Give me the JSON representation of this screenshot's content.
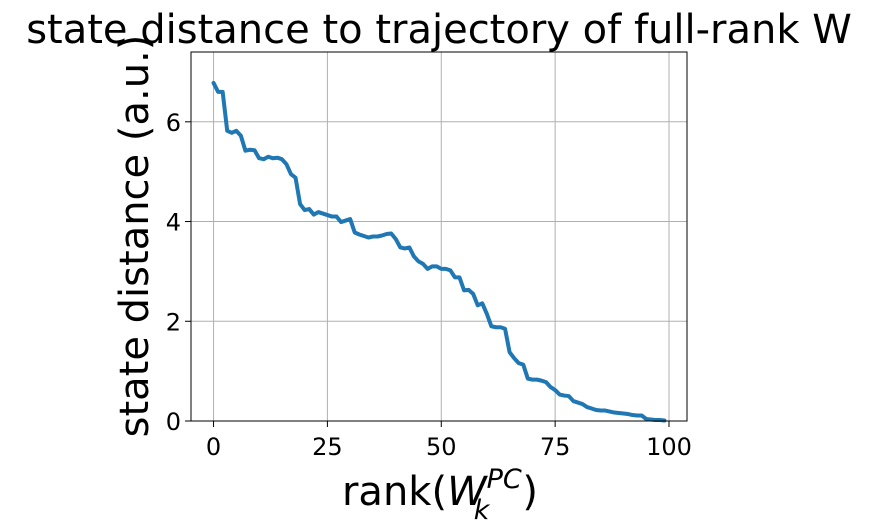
{
  "chart_data": {
    "type": "line",
    "title": "state distance to trajectory of full-rank W",
    "ylabel": "state distance (a.u.)",
    "xlabel": {
      "prefix": "rank(",
      "main": "W",
      "subscript": "k",
      "superscript": "PC",
      "suffix": ")"
    },
    "xlim": [
      -4.95,
      103.95
    ],
    "ylim": [
      0,
      7.4
    ],
    "xticks": [
      0,
      25,
      50,
      75,
      100
    ],
    "yticks": [
      0,
      2,
      4,
      6
    ],
    "grid": true,
    "line_color": "#1f77b4",
    "x": [
      0,
      1,
      2,
      3,
      4,
      5,
      6,
      7,
      8,
      9,
      10,
      11,
      12,
      13,
      14,
      15,
      16,
      17,
      18,
      19,
      20,
      21,
      22,
      23,
      24,
      25,
      26,
      27,
      28,
      29,
      30,
      31,
      32,
      33,
      34,
      35,
      36,
      37,
      38,
      39,
      40,
      41,
      42,
      43,
      44,
      45,
      46,
      47,
      48,
      49,
      50,
      51,
      52,
      53,
      54,
      55,
      56,
      57,
      58,
      59,
      60,
      61,
      62,
      63,
      64,
      65,
      66,
      67,
      68,
      69,
      70,
      71,
      72,
      73,
      74,
      75,
      76,
      77,
      78,
      79,
      80,
      81,
      82,
      83,
      84,
      85,
      86,
      87,
      88,
      89,
      90,
      91,
      92,
      93,
      94,
      95,
      96,
      97,
      98,
      99
    ],
    "y": [
      6.78,
      6.6,
      6.6,
      5.82,
      5.78,
      5.82,
      5.72,
      5.42,
      5.44,
      5.43,
      5.27,
      5.25,
      5.3,
      5.27,
      5.28,
      5.25,
      5.15,
      4.95,
      4.88,
      4.35,
      4.23,
      4.25,
      4.14,
      4.19,
      4.16,
      4.13,
      4.1,
      4.1,
      3.99,
      4.02,
      4.05,
      3.78,
      3.74,
      3.71,
      3.68,
      3.7,
      3.7,
      3.72,
      3.75,
      3.76,
      3.65,
      3.48,
      3.46,
      3.48,
      3.3,
      3.2,
      3.15,
      3.05,
      3.1,
      3.1,
      3.05,
      3.05,
      3.02,
      2.88,
      2.88,
      2.62,
      2.63,
      2.55,
      2.32,
      2.36,
      2.15,
      1.9,
      1.88,
      1.88,
      1.85,
      1.38,
      1.26,
      1.16,
      1.13,
      0.85,
      0.83,
      0.83,
      0.81,
      0.78,
      0.68,
      0.62,
      0.53,
      0.51,
      0.5,
      0.4,
      0.37,
      0.34,
      0.28,
      0.25,
      0.22,
      0.21,
      0.21,
      0.19,
      0.17,
      0.16,
      0.15,
      0.14,
      0.12,
      0.11,
      0.11,
      0.04,
      0.03,
      0.02,
      0.02,
      0.01
    ]
  }
}
